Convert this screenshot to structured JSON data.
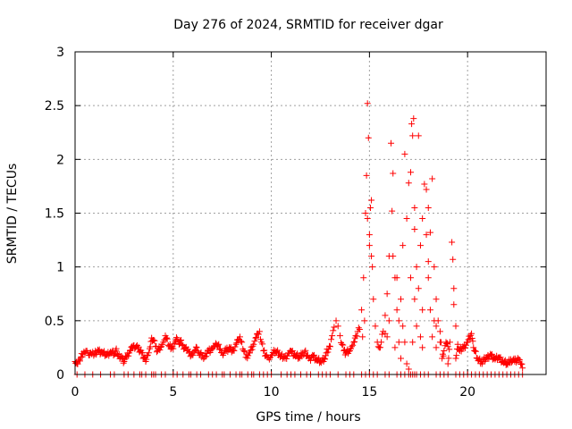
{
  "chart_data": {
    "type": "scatter",
    "title": "Day 276 of 2024, SRMTID for receiver dgar",
    "xlabel": "GPS time / hours",
    "ylabel": "SRMTID / TECUs",
    "xlim": [
      0,
      24
    ],
    "ylim": [
      0,
      3
    ],
    "x_ticks": [
      0,
      5,
      10,
      15,
      20
    ],
    "x_tick_labels": [
      "0",
      "5",
      "10",
      "15",
      "20"
    ],
    "y_ticks": [
      0,
      0.5,
      1,
      1.5,
      2,
      2.5,
      3
    ],
    "y_tick_labels": [
      "0",
      "0.5",
      "1",
      "1.5",
      "2",
      "2.5",
      "3"
    ],
    "grid": true,
    "marker": "+",
    "marker_color": "#ff0000",
    "series": [
      {
        "name": "SRMTID",
        "points": [
          [
            0.0,
            0.12
          ],
          [
            0.1,
            0.1
          ],
          [
            0.2,
            0.14
          ],
          [
            0.3,
            0.16
          ],
          [
            0.4,
            0.19
          ],
          [
            0.5,
            0.2
          ],
          [
            0.6,
            0.22
          ],
          [
            0.7,
            0.18
          ],
          [
            0.8,
            0.2
          ],
          [
            0.9,
            0.21
          ],
          [
            1.0,
            0.19
          ],
          [
            1.2,
            0.22
          ],
          [
            1.4,
            0.2
          ],
          [
            1.6,
            0.18
          ],
          [
            1.8,
            0.21
          ],
          [
            2.0,
            0.19
          ],
          [
            2.1,
            0.24
          ],
          [
            2.2,
            0.17
          ],
          [
            2.4,
            0.15
          ],
          [
            2.5,
            0.12
          ],
          [
            2.6,
            0.16
          ],
          [
            2.8,
            0.22
          ],
          [
            2.9,
            0.26
          ],
          [
            3.0,
            0.27
          ],
          [
            3.2,
            0.24
          ],
          [
            3.4,
            0.2
          ],
          [
            3.5,
            0.16
          ],
          [
            3.6,
            0.12
          ],
          [
            3.7,
            0.18
          ],
          [
            3.8,
            0.24
          ],
          [
            3.9,
            0.34
          ],
          [
            4.0,
            0.32
          ],
          [
            4.1,
            0.26
          ],
          [
            4.2,
            0.22
          ],
          [
            4.4,
            0.26
          ],
          [
            4.5,
            0.3
          ],
          [
            4.6,
            0.36
          ],
          [
            4.7,
            0.33
          ],
          [
            4.8,
            0.26
          ],
          [
            5.0,
            0.24
          ],
          [
            5.1,
            0.3
          ],
          [
            5.2,
            0.33
          ],
          [
            5.3,
            0.28
          ],
          [
            5.4,
            0.32
          ],
          [
            5.5,
            0.27
          ],
          [
            5.7,
            0.22
          ],
          [
            5.8,
            0.2
          ],
          [
            6.0,
            0.18
          ],
          [
            6.1,
            0.22
          ],
          [
            6.2,
            0.25
          ],
          [
            6.3,
            0.2
          ],
          [
            6.5,
            0.18
          ],
          [
            6.6,
            0.16
          ],
          [
            6.8,
            0.22
          ],
          [
            7.0,
            0.24
          ],
          [
            7.1,
            0.26
          ],
          [
            7.2,
            0.28
          ],
          [
            7.4,
            0.24
          ],
          [
            7.5,
            0.2
          ],
          [
            7.7,
            0.22
          ],
          [
            7.9,
            0.24
          ],
          [
            8.1,
            0.22
          ],
          [
            8.2,
            0.28
          ],
          [
            8.3,
            0.32
          ],
          [
            8.4,
            0.35
          ],
          [
            8.5,
            0.3
          ],
          [
            8.6,
            0.22
          ],
          [
            8.7,
            0.16
          ],
          [
            8.9,
            0.2
          ],
          [
            9.1,
            0.28
          ],
          [
            9.2,
            0.34
          ],
          [
            9.3,
            0.38
          ],
          [
            9.4,
            0.4
          ],
          [
            9.5,
            0.3
          ],
          [
            9.6,
            0.22
          ],
          [
            9.8,
            0.16
          ],
          [
            9.9,
            0.14
          ],
          [
            10.0,
            0.18
          ],
          [
            10.2,
            0.22
          ],
          [
            10.4,
            0.2
          ],
          [
            10.5,
            0.17
          ],
          [
            10.7,
            0.15
          ],
          [
            10.9,
            0.2
          ],
          [
            11.0,
            0.22
          ],
          [
            11.2,
            0.18
          ],
          [
            11.4,
            0.16
          ],
          [
            11.6,
            0.2
          ],
          [
            11.7,
            0.21
          ],
          [
            11.9,
            0.15
          ],
          [
            12.0,
            0.13
          ],
          [
            12.1,
            0.18
          ],
          [
            12.3,
            0.14
          ],
          [
            12.5,
            0.12
          ],
          [
            12.7,
            0.15
          ],
          [
            12.8,
            0.2
          ],
          [
            13.0,
            0.26
          ],
          [
            13.1,
            0.36
          ],
          [
            13.2,
            0.44
          ],
          [
            13.3,
            0.5
          ],
          [
            13.4,
            0.45
          ],
          [
            13.5,
            0.36
          ],
          [
            13.6,
            0.28
          ],
          [
            13.7,
            0.22
          ],
          [
            13.8,
            0.2
          ],
          [
            14.0,
            0.22
          ],
          [
            14.1,
            0.26
          ],
          [
            14.2,
            0.3
          ],
          [
            14.3,
            0.36
          ],
          [
            14.4,
            0.4
          ],
          [
            14.5,
            0.42
          ],
          [
            14.6,
            0.6
          ],
          [
            14.7,
            0.9
          ],
          [
            14.8,
            1.5
          ],
          [
            14.85,
            1.85
          ],
          [
            14.9,
            2.52
          ],
          [
            14.95,
            2.2
          ],
          [
            15.0,
            1.3
          ],
          [
            15.05,
            1.55
          ],
          [
            15.1,
            1.62
          ],
          [
            15.15,
            1.0
          ],
          [
            15.2,
            0.7
          ],
          [
            15.3,
            0.45
          ],
          [
            15.4,
            0.3
          ],
          [
            15.5,
            0.25
          ],
          [
            15.6,
            0.3
          ],
          [
            15.7,
            0.4
          ],
          [
            15.8,
            0.55
          ],
          [
            15.9,
            0.75
          ],
          [
            16.0,
            1.1
          ],
          [
            16.1,
            2.15
          ],
          [
            16.15,
            1.52
          ],
          [
            16.2,
            1.87
          ],
          [
            16.3,
            0.9
          ],
          [
            16.4,
            0.6
          ],
          [
            16.5,
            0.5
          ],
          [
            16.6,
            0.7
          ],
          [
            16.7,
            1.2
          ],
          [
            16.8,
            2.05
          ],
          [
            16.9,
            1.45
          ],
          [
            17.0,
            1.78
          ],
          [
            17.1,
            1.88
          ],
          [
            17.15,
            2.33
          ],
          [
            17.2,
            2.22
          ],
          [
            17.25,
            2.38
          ],
          [
            17.3,
            1.55
          ],
          [
            17.4,
            1.0
          ],
          [
            17.5,
            2.22
          ],
          [
            17.6,
            1.2
          ],
          [
            17.7,
            0.6
          ],
          [
            17.8,
            1.77
          ],
          [
            17.9,
            1.72
          ],
          [
            18.0,
            1.55
          ],
          [
            18.1,
            1.32
          ],
          [
            18.2,
            1.82
          ],
          [
            18.3,
            1.0
          ],
          [
            18.4,
            0.7
          ],
          [
            18.5,
            0.5
          ],
          [
            18.6,
            0.3
          ],
          [
            18.8,
            0.22
          ],
          [
            19.0,
            0.26
          ],
          [
            19.1,
            0.3
          ],
          [
            19.2,
            1.23
          ],
          [
            19.25,
            1.07
          ],
          [
            19.3,
            0.8
          ],
          [
            19.4,
            0.45
          ],
          [
            19.5,
            0.28
          ],
          [
            19.6,
            0.22
          ],
          [
            19.8,
            0.25
          ],
          [
            20.0,
            0.3
          ],
          [
            20.2,
            0.38
          ],
          [
            20.3,
            0.25
          ],
          [
            20.5,
            0.15
          ],
          [
            20.7,
            0.12
          ],
          [
            21.0,
            0.15
          ],
          [
            21.2,
            0.18
          ],
          [
            21.4,
            0.14
          ],
          [
            21.6,
            0.16
          ],
          [
            21.8,
            0.12
          ],
          [
            22.0,
            0.1
          ],
          [
            22.2,
            0.14
          ],
          [
            22.4,
            0.12
          ],
          [
            22.6,
            0.14
          ],
          [
            22.7,
            0.1
          ],
          [
            22.8,
            0.06
          ],
          [
            14.65,
            0.35
          ],
          [
            14.75,
            0.5
          ],
          [
            14.9,
            1.45
          ],
          [
            15.0,
            1.2
          ],
          [
            15.1,
            1.1
          ],
          [
            15.8,
            0.38
          ],
          [
            16.0,
            0.5
          ],
          [
            16.3,
            0.25
          ],
          [
            16.5,
            0.3
          ],
          [
            16.6,
            0.15
          ],
          [
            16.8,
            0.3
          ],
          [
            16.9,
            0.1
          ],
          [
            17.0,
            0.05
          ],
          [
            17.2,
            0.3
          ],
          [
            17.3,
            0.7
          ],
          [
            17.4,
            0.45
          ],
          [
            17.5,
            0.8
          ],
          [
            17.6,
            0.35
          ],
          [
            17.7,
            0.25
          ],
          [
            17.9,
            1.3
          ],
          [
            18.0,
            0.9
          ],
          [
            18.1,
            0.6
          ],
          [
            18.2,
            0.35
          ],
          [
            18.3,
            0.5
          ],
          [
            18.4,
            0.25
          ],
          [
            18.6,
            0.4
          ],
          [
            18.7,
            0.15
          ],
          [
            19.0,
            0.1
          ],
          [
            19.3,
            0.65
          ],
          [
            19.4,
            0.15
          ],
          [
            16.2,
            1.1
          ],
          [
            16.4,
            0.9
          ],
          [
            16.7,
            0.45
          ],
          [
            17.1,
            0.9
          ],
          [
            17.3,
            1.35
          ],
          [
            17.7,
            1.45
          ],
          [
            18.0,
            1.05
          ],
          [
            18.4,
            0.45
          ],
          [
            15.9,
            0.35
          ],
          [
            18.9,
            0.3
          ]
        ],
        "zero_rug_x": [
          0.1,
          0.5,
          0.9,
          1.3,
          1.8,
          2.0,
          2.5,
          2.7,
          3.0,
          3.3,
          3.4,
          3.6,
          3.9,
          4.0,
          4.1,
          4.4,
          4.6,
          5.0,
          5.2,
          5.5,
          5.8,
          5.9,
          6.2,
          6.4,
          6.8,
          7.0,
          7.2,
          7.5,
          7.6,
          7.9,
          8.2,
          8.4,
          8.5,
          8.8,
          9.0,
          9.1,
          9.4,
          9.6,
          9.8,
          10.0,
          10.5,
          10.8,
          11.0,
          11.2,
          11.5,
          11.8,
          12.0,
          12.4,
          12.6,
          12.8,
          13.0,
          13.4,
          13.8,
          14.0,
          14.2,
          14.6,
          14.8,
          15.0,
          15.2,
          15.4,
          15.8,
          16.0,
          16.4,
          16.6,
          16.8,
          17.0,
          17.1,
          17.2,
          17.3,
          17.4,
          17.6,
          17.8,
          18.0,
          18.4,
          18.6,
          18.8,
          19.0,
          19.4,
          19.6,
          19.8,
          20.0,
          20.2,
          20.4,
          20.6,
          20.8,
          21.0,
          21.2,
          21.4,
          21.6,
          21.8,
          22.0,
          22.2,
          22.4,
          22.6,
          22.8
        ]
      }
    ]
  }
}
